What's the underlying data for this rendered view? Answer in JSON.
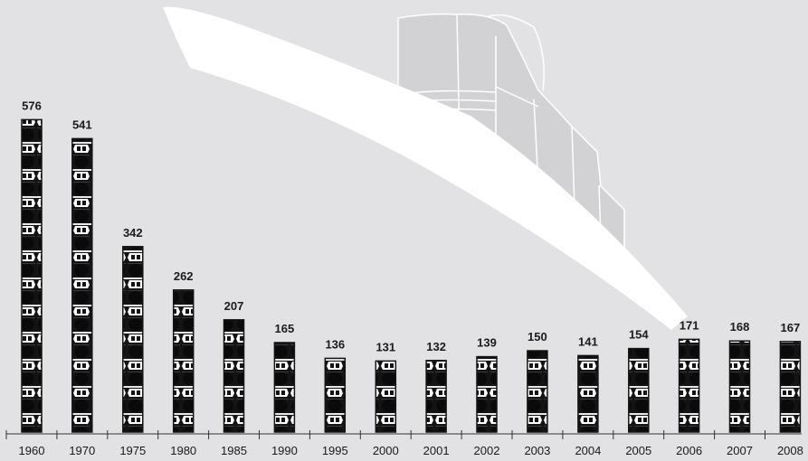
{
  "chart_data": {
    "type": "bar",
    "categories": [
      "1960",
      "1970",
      "1975",
      "1980",
      "1985",
      "1990",
      "1995",
      "2000",
      "2001",
      "2002",
      "2003",
      "2004",
      "2005",
      "2006",
      "2007",
      "2008"
    ],
    "values": [
      576,
      541,
      342,
      262,
      207,
      165,
      136,
      131,
      132,
      139,
      150,
      141,
      154,
      171,
      168,
      167
    ],
    "value_labels": [
      "576",
      "541",
      "342",
      "262",
      "207",
      "165",
      "136",
      "131",
      "132",
      "139",
      "150",
      "141",
      "154",
      "171",
      "168",
      "167"
    ],
    "title": "",
    "xlabel": "",
    "ylabel": "",
    "ylim": [
      0,
      600
    ],
    "grid": false,
    "legend": "none",
    "background_illustration": "ship-icon",
    "colors": {
      "background": "#e2e1e3",
      "bar_fill": "#141414",
      "bar_pattern": "#ffffff",
      "ship_hull": "#ffffff",
      "ship_superstructure": "#d2d1d3",
      "axis": "#333333",
      "text": "#1a1a1a"
    }
  }
}
